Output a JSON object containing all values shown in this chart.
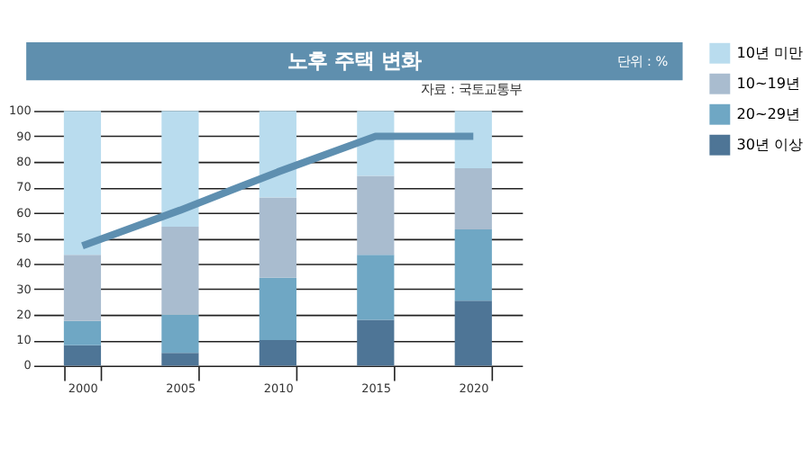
{
  "chart_data": {
    "type": "bar",
    "title": "노후 주택 변화",
    "subtitle": "단위 : %",
    "annotations": [
      "자료 : 국토교통부"
    ],
    "categories": [
      "2000",
      "2005",
      "2010",
      "2015",
      "2020"
    ],
    "stacked": true,
    "ylim": [
      0,
      100
    ],
    "yticks": [
      0,
      10,
      20,
      30,
      40,
      50,
      60,
      70,
      80,
      90,
      100
    ],
    "grid": "y",
    "legend": "right",
    "series": [
      {
        "name": "30년 이상",
        "color": "#4e7596",
        "values": [
          8,
          5,
          10,
          18,
          25.5
        ]
      },
      {
        "name": "20~29년",
        "color": "#6fa7c4",
        "values": [
          9.5,
          15,
          24.5,
          25.5,
          28
        ]
      },
      {
        "name": "10~19년",
        "color": "#a9bccf",
        "values": [
          26,
          34.5,
          31.5,
          31,
          24
        ]
      },
      {
        "name": "10년 미만",
        "color": "#b9dcee",
        "values": [
          56.5,
          45.5,
          34,
          25.5,
          22.5
        ]
      },
      {
        "type": "line",
        "color": "#5e8fb0",
        "values": [
          47,
          61,
          76,
          90,
          90
        ],
        "marker": "none"
      }
    ]
  }
}
